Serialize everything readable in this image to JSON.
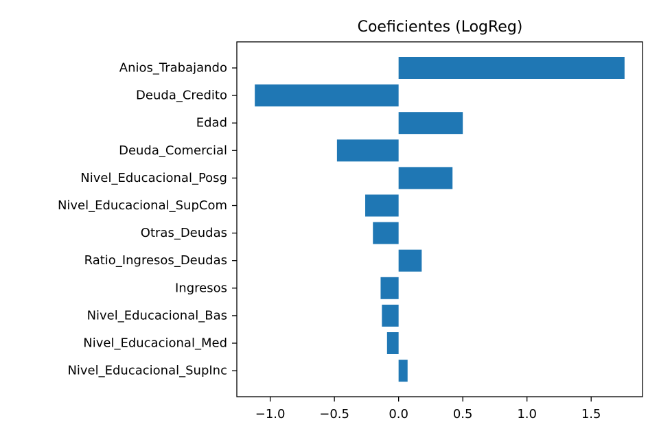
{
  "chart_data": {
    "type": "bar",
    "orientation": "horizontal",
    "title": "Coeficientes (LogReg)",
    "xlabel": "",
    "ylabel": "",
    "categories": [
      "Anios_Trabajando",
      "Deuda_Credito",
      "Edad",
      "Deuda_Comercial",
      "Nivel_Educacional_Posg",
      "Nivel_Educacional_SupCom",
      "Otras_Deudas",
      "Ratio_Ingresos_Deudas",
      "Ingresos",
      "Nivel_Educacional_Bas",
      "Nivel_Educacional_Med",
      "Nivel_Educacional_SupInc"
    ],
    "values": [
      1.76,
      -1.12,
      0.5,
      -0.48,
      0.42,
      -0.26,
      -0.2,
      0.18,
      -0.14,
      -0.13,
      -0.09,
      0.07
    ],
    "xlim": [
      -1.26,
      1.9
    ],
    "xticks": [
      -1.0,
      -0.5,
      0.0,
      0.5,
      1.0,
      1.5
    ],
    "xtick_labels": [
      "−1.0",
      "−0.5",
      "0.0",
      "0.5",
      "1.0",
      "1.5"
    ],
    "bar_color": "#1f77b4",
    "grid": false,
    "legend": null
  }
}
